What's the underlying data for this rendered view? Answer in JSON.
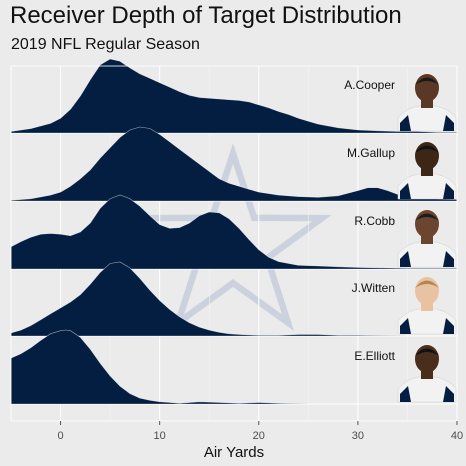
{
  "chart_data": {
    "type": "area",
    "title": "Receiver Depth of Target Distribution",
    "subtitle": "2019 NFL Regular Season",
    "xlabel": "Air Yards",
    "ylabel": "",
    "xlim": [
      -5,
      40
    ],
    "xticks": [
      0,
      10,
      20,
      30,
      40
    ],
    "grid": true,
    "fill_color": "#041e42",
    "background_color": "#ebebeb",
    "watermark": "dallas-cowboys-star-logo",
    "series": [
      {
        "name": "A.Cooper",
        "x": [
          -5,
          -3,
          -1,
          0,
          1,
          2,
          3,
          4,
          5,
          6,
          7,
          8,
          9,
          10,
          11,
          12,
          13,
          14,
          15,
          16,
          17,
          18,
          19,
          20,
          21,
          22,
          23,
          24,
          25,
          26,
          28,
          30,
          32,
          34,
          36,
          38,
          40
        ],
        "y": [
          0.02,
          0.06,
          0.13,
          0.2,
          0.32,
          0.5,
          0.72,
          0.92,
          1.0,
          0.97,
          0.88,
          0.8,
          0.74,
          0.68,
          0.62,
          0.56,
          0.51,
          0.48,
          0.47,
          0.46,
          0.45,
          0.44,
          0.42,
          0.38,
          0.34,
          0.29,
          0.25,
          0.2,
          0.16,
          0.12,
          0.07,
          0.04,
          0.03,
          0.02,
          0.02,
          0.01,
          0.01
        ]
      },
      {
        "name": "M.Gallup",
        "x": [
          -5,
          -3,
          -1,
          0,
          1,
          2,
          3,
          4,
          5,
          6,
          7,
          8,
          9,
          10,
          11,
          12,
          13,
          14,
          15,
          16,
          17,
          18,
          19,
          20,
          22,
          24,
          26,
          28,
          30,
          31,
          32,
          33,
          34,
          36,
          38,
          40
        ],
        "y": [
          0.01,
          0.03,
          0.08,
          0.12,
          0.2,
          0.3,
          0.42,
          0.58,
          0.72,
          0.86,
          0.96,
          1.0,
          0.98,
          0.9,
          0.8,
          0.7,
          0.6,
          0.5,
          0.4,
          0.3,
          0.24,
          0.2,
          0.16,
          0.12,
          0.08,
          0.06,
          0.05,
          0.07,
          0.14,
          0.18,
          0.18,
          0.14,
          0.09,
          0.05,
          0.03,
          0.02
        ]
      },
      {
        "name": "R.Cobb",
        "x": [
          -5,
          -4,
          -3,
          -2,
          -1,
          0,
          1,
          2,
          3,
          4,
          5,
          6,
          7,
          8,
          9,
          10,
          11,
          12,
          13,
          14,
          15,
          16,
          17,
          18,
          19,
          20,
          21,
          22,
          24,
          26,
          28,
          30,
          35,
          40
        ],
        "y": [
          0.3,
          0.37,
          0.43,
          0.47,
          0.48,
          0.47,
          0.45,
          0.5,
          0.62,
          0.82,
          0.95,
          1.0,
          0.95,
          0.85,
          0.72,
          0.6,
          0.55,
          0.56,
          0.62,
          0.72,
          0.77,
          0.76,
          0.68,
          0.55,
          0.4,
          0.26,
          0.16,
          0.1,
          0.05,
          0.04,
          0.03,
          0.02,
          0.01,
          0.01
        ]
      },
      {
        "name": "J.Witten",
        "x": [
          -5,
          -4,
          -3,
          -2,
          -1,
          0,
          1,
          2,
          3,
          4,
          5,
          6,
          7,
          8,
          9,
          10,
          11,
          12,
          13,
          14,
          15,
          16,
          17,
          18,
          20,
          22,
          24,
          26,
          28,
          30,
          35,
          40
        ],
        "y": [
          0.04,
          0.08,
          0.14,
          0.22,
          0.3,
          0.38,
          0.46,
          0.56,
          0.7,
          0.86,
          0.98,
          1.0,
          0.92,
          0.78,
          0.62,
          0.48,
          0.36,
          0.26,
          0.18,
          0.12,
          0.08,
          0.05,
          0.03,
          0.02,
          0.01,
          0.01,
          0.02,
          0.02,
          0.01,
          0.01,
          0.0,
          0.0
        ]
      },
      {
        "name": "E.Elliott",
        "x": [
          -5,
          -4,
          -3,
          -2,
          -1,
          0,
          0.5,
          1,
          2,
          3,
          4,
          5,
          6,
          7,
          8,
          9,
          10,
          11,
          12,
          14,
          16,
          18,
          20,
          22,
          25,
          30,
          35,
          40
        ],
        "y": [
          0.62,
          0.68,
          0.76,
          0.86,
          0.95,
          0.99,
          1.0,
          0.99,
          0.9,
          0.74,
          0.55,
          0.38,
          0.24,
          0.14,
          0.08,
          0.05,
          0.03,
          0.02,
          0.01,
          0.03,
          0.02,
          0.01,
          0.02,
          0.01,
          0.0,
          0.0,
          0.0,
          0.0
        ]
      }
    ]
  }
}
